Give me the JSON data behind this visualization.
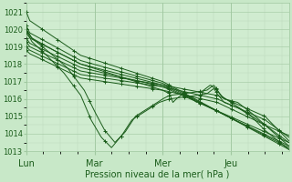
{
  "xlabel": "Pression niveau de la mer( hPa )",
  "background_color": "#c8e8c8",
  "plot_bg_color": "#d0ecd0",
  "grid_color_major": "#a0c8a0",
  "grid_color_minor": "#b8d8b8",
  "line_color": "#1a5c1a",
  "ylim": [
    1013,
    1021.5
  ],
  "yticks": [
    1013,
    1014,
    1015,
    1016,
    1017,
    1018,
    1019,
    1020,
    1021
  ],
  "day_labels": [
    "Lun",
    "Mar",
    "Mer",
    "Jeu"
  ],
  "day_positions": [
    0.0,
    1.0,
    2.0,
    3.0
  ],
  "xlim": [
    0.0,
    3.85
  ]
}
